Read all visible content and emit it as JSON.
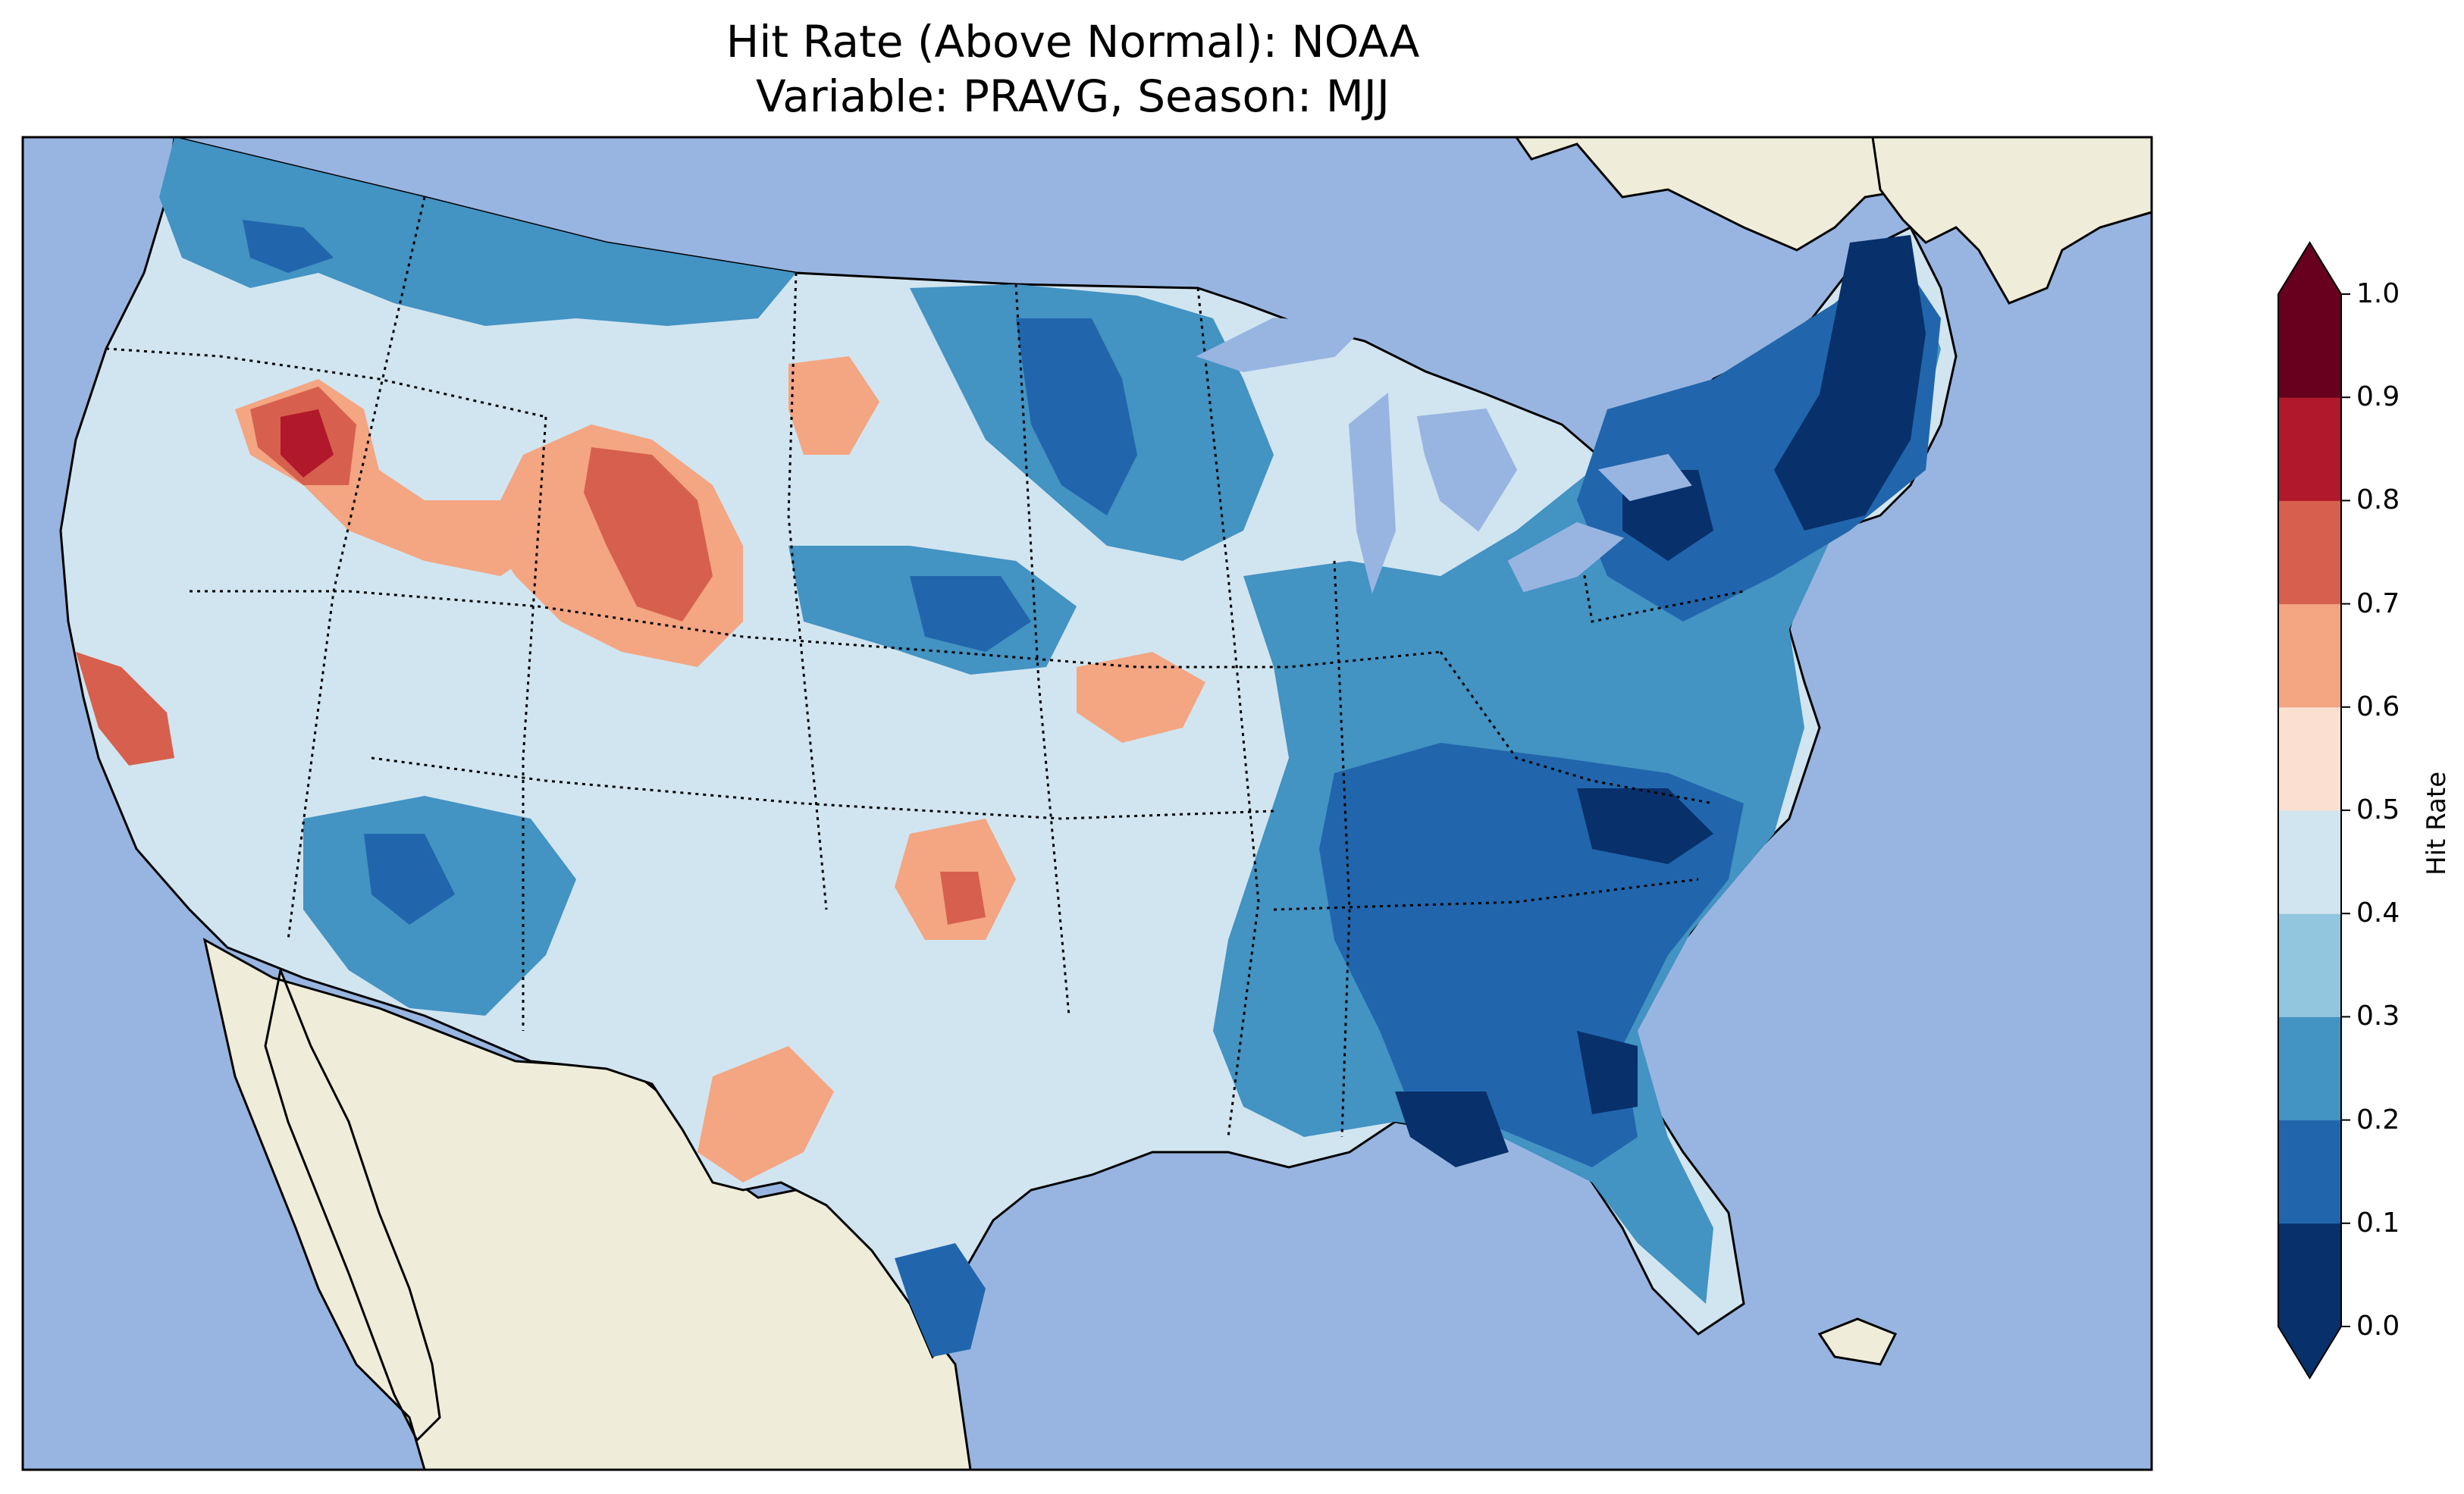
{
  "title_line1": "Hit Rate (Above Normal): NOAA",
  "title_line2": "Variable: PRAVG, Season: MJJ",
  "colors": {
    "ocean": "#98b5e1",
    "land": "#efedd9",
    "border": "#000000"
  },
  "colorbar": {
    "label": "Hit Rate",
    "ticks": [
      "0.0",
      "0.1",
      "0.2",
      "0.3",
      "0.4",
      "0.5",
      "0.6",
      "0.7",
      "0.8",
      "0.9",
      "1.0"
    ],
    "levels": [
      0.0,
      0.1,
      0.2,
      0.3,
      0.4,
      0.5,
      0.6,
      0.7,
      0.8,
      0.9,
      1.0
    ],
    "colors": [
      "#08306b",
      "#2166ac",
      "#4393c3",
      "#92c5de",
      "#d1e5f0",
      "#fbe0d2",
      "#f4a582",
      "#d6604d",
      "#b2182b",
      "#67001f"
    ],
    "extend": "both"
  }
}
